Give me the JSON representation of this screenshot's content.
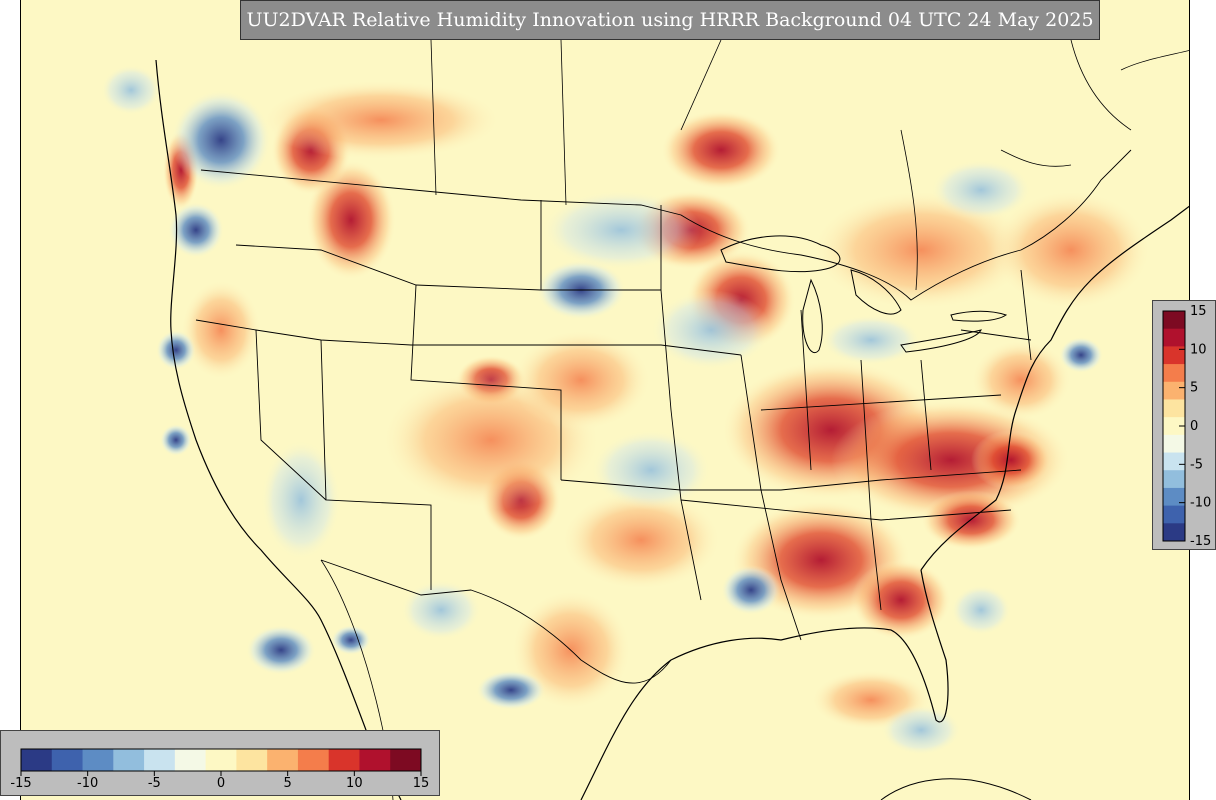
{
  "title": "UU2DVAR Relative Humidity Innovation using HRRR Background 04 UTC 24 May 2025",
  "colorbar": {
    "min": -15,
    "max": 15,
    "ticks_vertical": [
      "15",
      "10",
      "5",
      "0",
      "-5",
      "-10",
      "-15"
    ],
    "ticks_horizontal": [
      "-15",
      "-10",
      "-5",
      "0",
      "5",
      "10",
      "15"
    ],
    "colors": [
      "#2b3a85",
      "#3e62ad",
      "#5d8cc4",
      "#92bedd",
      "#c9e3ef",
      "#f4f9e6",
      "#fdf8c4",
      "#fde4a0",
      "#fbb26f",
      "#f47d4b",
      "#d9342b",
      "#b0112d",
      "#7d0a22"
    ]
  },
  "colors": {
    "background_field": "#fdf8c4",
    "panel_gray": "#8c8c8c",
    "colorbar_panel": "#bdbdbd",
    "border_lines": "#000000"
  }
}
